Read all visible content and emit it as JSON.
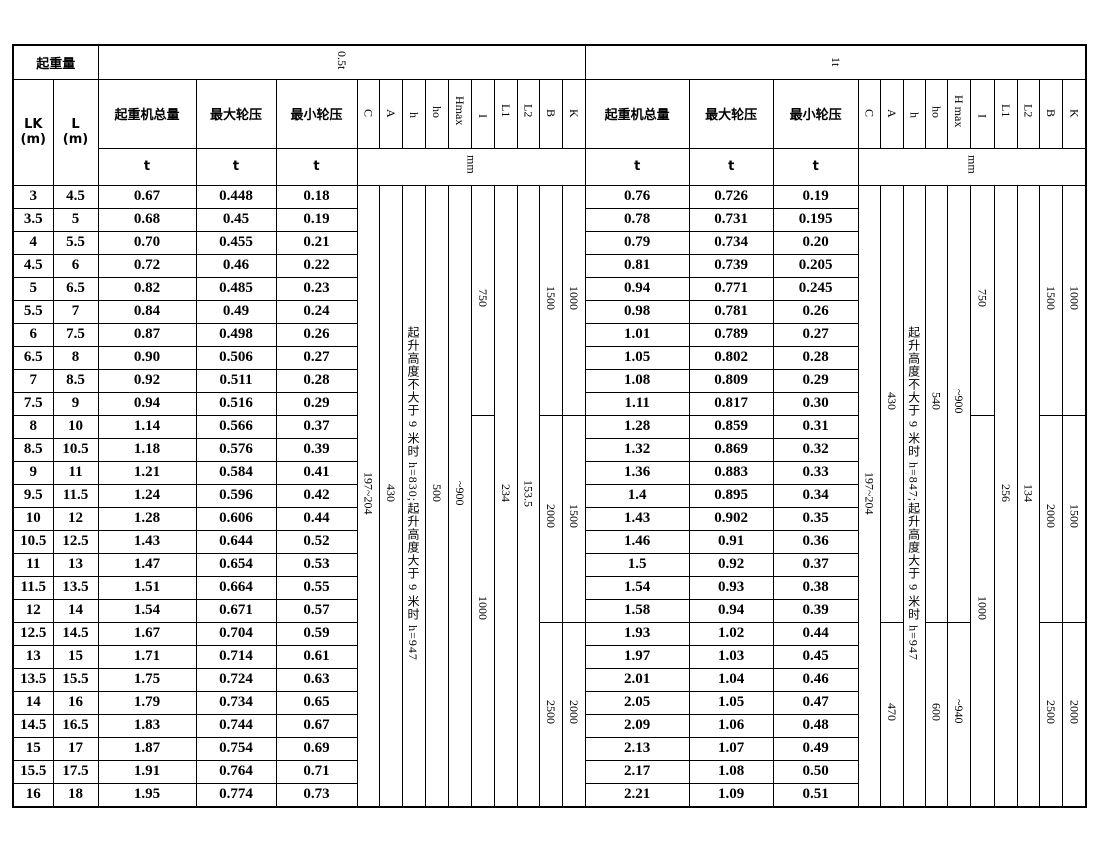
{
  "header": {
    "capacity_label": "起重量",
    "capacity_half": "0.5t",
    "capacity_one": "1t",
    "lk_label": "LK",
    "lk_unit": "(m)",
    "l_label": "L",
    "l_unit": "(m)",
    "total_weight": "起重机总量",
    "max_wheel": "最大轮压",
    "min_wheel": "最小轮压",
    "dims_half": [
      "C",
      "A",
      "h",
      "ho",
      "Hmax",
      "I",
      "L1",
      "L2",
      "B",
      "K"
    ],
    "dims_one": [
      "C",
      "A",
      "h",
      "ho",
      "H max",
      "I",
      "L1",
      "L2",
      "B",
      "K"
    ],
    "unit_t": "t",
    "unit_mm": "mm"
  },
  "rows": [
    [
      "3",
      "4.5",
      "0.67",
      "0.448",
      "0.18",
      "0.76",
      "0.726",
      "0.19"
    ],
    [
      "3.5",
      "5",
      "0.68",
      "0.45",
      "0.19",
      "0.78",
      "0.731",
      "0.195"
    ],
    [
      "4",
      "5.5",
      "0.70",
      "0.455",
      "0.21",
      "0.79",
      "0.734",
      "0.20"
    ],
    [
      "4.5",
      "6",
      "0.72",
      "0.46",
      "0.22",
      "0.81",
      "0.739",
      "0.205"
    ],
    [
      "5",
      "6.5",
      "0.82",
      "0.485",
      "0.23",
      "0.94",
      "0.771",
      "0.245"
    ],
    [
      "5.5",
      "7",
      "0.84",
      "0.49",
      "0.24",
      "0.98",
      "0.781",
      "0.26"
    ],
    [
      "6",
      "7.5",
      "0.87",
      "0.498",
      "0.26",
      "1.01",
      "0.789",
      "0.27"
    ],
    [
      "6.5",
      "8",
      "0.90",
      "0.506",
      "0.27",
      "1.05",
      "0.802",
      "0.28"
    ],
    [
      "7",
      "8.5",
      "0.92",
      "0.511",
      "0.28",
      "1.08",
      "0.809",
      "0.29"
    ],
    [
      "7.5",
      "9",
      "0.94",
      "0.516",
      "0.29",
      "1.11",
      "0.817",
      "0.30"
    ],
    [
      "8",
      "10",
      "1.14",
      "0.566",
      "0.37",
      "1.28",
      "0.859",
      "0.31"
    ],
    [
      "8.5",
      "10.5",
      "1.18",
      "0.576",
      "0.39",
      "1.32",
      "0.869",
      "0.32"
    ],
    [
      "9",
      "11",
      "1.21",
      "0.584",
      "0.41",
      "1.36",
      "0.883",
      "0.33"
    ],
    [
      "9.5",
      "11.5",
      "1.24",
      "0.596",
      "0.42",
      "1.4",
      "0.895",
      "0.34"
    ],
    [
      "10",
      "12",
      "1.28",
      "0.606",
      "0.44",
      "1.43",
      "0.902",
      "0.35"
    ],
    [
      "10.5",
      "12.5",
      "1.43",
      "0.644",
      "0.52",
      "1.46",
      "0.91",
      "0.36"
    ],
    [
      "11",
      "13",
      "1.47",
      "0.654",
      "0.53",
      "1.5",
      "0.92",
      "0.37"
    ],
    [
      "11.5",
      "13.5",
      "1.51",
      "0.664",
      "0.55",
      "1.54",
      "0.93",
      "0.38"
    ],
    [
      "12",
      "14",
      "1.54",
      "0.671",
      "0.57",
      "1.58",
      "0.94",
      "0.39"
    ],
    [
      "12.5",
      "14.5",
      "1.67",
      "0.704",
      "0.59",
      "1.93",
      "1.02",
      "0.44"
    ],
    [
      "13",
      "15",
      "1.71",
      "0.714",
      "0.61",
      "1.97",
      "1.03",
      "0.45"
    ],
    [
      "13.5",
      "15.5",
      "1.75",
      "0.724",
      "0.63",
      "2.01",
      "1.04",
      "0.46"
    ],
    [
      "14",
      "16",
      "1.79",
      "0.734",
      "0.65",
      "2.05",
      "1.05",
      "0.47"
    ],
    [
      "14.5",
      "16.5",
      "1.83",
      "0.744",
      "0.67",
      "2.09",
      "1.06",
      "0.48"
    ],
    [
      "15",
      "17",
      "1.87",
      "0.754",
      "0.69",
      "2.13",
      "1.07",
      "0.49"
    ],
    [
      "15.5",
      "17.5",
      "1.91",
      "0.764",
      "0.71",
      "2.17",
      "1.08",
      "0.50"
    ],
    [
      "16",
      "18",
      "1.95",
      "0.774",
      "0.73",
      "2.21",
      "1.09",
      "0.51"
    ]
  ],
  "dims_half": [
    [
      {
        "value": "197~204",
        "rows": 27
      }
    ],
    [
      {
        "value": "430",
        "rows": 27
      }
    ],
    [
      {
        "value": "起升高度不大于 9 米时 h=830;起升高度大于 9 米时 h=947",
        "rows": 27
      }
    ],
    [
      {
        "value": "500",
        "rows": 27
      }
    ],
    [
      {
        "value": "~900",
        "rows": 27
      }
    ],
    [
      {
        "value": "750",
        "rows": 10
      },
      {
        "value": "1000",
        "rows": 17
      }
    ],
    [
      {
        "value": "234",
        "rows": 27
      }
    ],
    [
      {
        "value": "153.5",
        "rows": 27
      }
    ],
    [
      {
        "value": "1500",
        "rows": 10
      },
      {
        "value": "2000",
        "rows": 9
      },
      {
        "value": "2500",
        "rows": 8
      }
    ],
    [
      {
        "value": "1000",
        "rows": 10
      },
      {
        "value": "1500",
        "rows": 9
      },
      {
        "value": "2000",
        "rows": 8
      }
    ]
  ],
  "dims_one": [
    [
      {
        "value": "197~204",
        "rows": 27
      }
    ],
    [
      {
        "value": "430",
        "rows": 19
      },
      {
        "value": "470",
        "rows": 8
      }
    ],
    [
      {
        "value": "起升高度不大于 9 米时 h=847;起升高度大于 9 米时 h=947",
        "rows": 27
      }
    ],
    [
      {
        "value": "540",
        "rows": 19
      },
      {
        "value": "600",
        "rows": 8
      }
    ],
    [
      {
        "value": "~900",
        "rows": 19
      },
      {
        "value": "~940",
        "rows": 8
      }
    ],
    [
      {
        "value": "750",
        "rows": 10
      },
      {
        "value": "1000",
        "rows": 17
      }
    ],
    [
      {
        "value": "256",
        "rows": 27
      }
    ],
    [
      {
        "value": "134",
        "rows": 27
      }
    ],
    [
      {
        "value": "1500",
        "rows": 10
      },
      {
        "value": "2000",
        "rows": 9
      },
      {
        "value": "2500",
        "rows": 8
      }
    ],
    [
      {
        "value": "1000",
        "rows": 10
      },
      {
        "value": "1500",
        "rows": 9
      },
      {
        "value": "2000",
        "rows": 8
      }
    ]
  ]
}
